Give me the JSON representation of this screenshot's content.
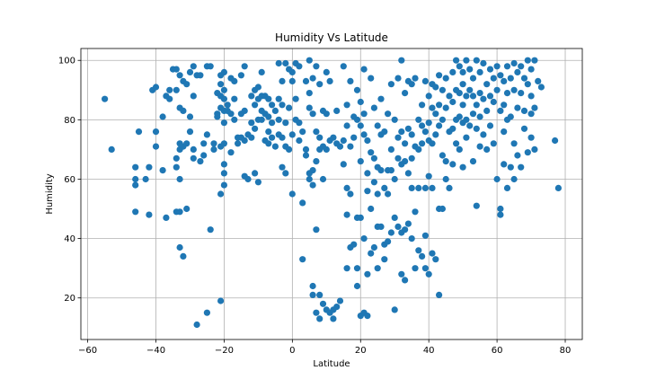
{
  "chart_data": {
    "type": "scatter",
    "title": "Humidity Vs Latitude",
    "xlabel": "Latitude",
    "ylabel": "Humidity",
    "xlim": [
      -62,
      85
    ],
    "ylim": [
      6,
      104
    ],
    "xticks": [
      -60,
      -40,
      -20,
      0,
      20,
      40,
      60,
      80
    ],
    "yticks": [
      20,
      40,
      60,
      80,
      100
    ],
    "grid": true,
    "marker_color": "#1f77b4",
    "points": [
      [
        -55,
        87
      ],
      [
        -53,
        70
      ],
      [
        -46,
        64
      ],
      [
        -46,
        60
      ],
      [
        -46,
        58
      ],
      [
        -46,
        49
      ],
      [
        -45,
        76
      ],
      [
        -43,
        60
      ],
      [
        -42,
        64
      ],
      [
        -42,
        48
      ],
      [
        -41,
        90
      ],
      [
        -40,
        91
      ],
      [
        -40,
        76
      ],
      [
        -40,
        71
      ],
      [
        -38,
        81
      ],
      [
        -38,
        63
      ],
      [
        -37,
        88
      ],
      [
        -37,
        47
      ],
      [
        -36,
        90
      ],
      [
        -36,
        87
      ],
      [
        -35,
        97
      ],
      [
        -34,
        97
      ],
      [
        -34,
        90
      ],
      [
        -34,
        67
      ],
      [
        -34,
        64
      ],
      [
        -34,
        49
      ],
      [
        -33,
        95
      ],
      [
        -33,
        84
      ],
      [
        -33,
        72
      ],
      [
        -33,
        70
      ],
      [
        -33,
        60
      ],
      [
        -33,
        49
      ],
      [
        -33,
        37
      ],
      [
        -32,
        93
      ],
      [
        -32,
        83
      ],
      [
        -32,
        71
      ],
      [
        -32,
        34
      ],
      [
        -31,
        92
      ],
      [
        -31,
        72
      ],
      [
        -31,
        50
      ],
      [
        -30,
        96
      ],
      [
        -30,
        81
      ],
      [
        -30,
        76
      ],
      [
        -29,
        98
      ],
      [
        -29,
        88
      ],
      [
        -29,
        70
      ],
      [
        -29,
        67
      ],
      [
        -28,
        95
      ],
      [
        -28,
        11
      ],
      [
        -27,
        95
      ],
      [
        -27,
        66
      ],
      [
        -26,
        72
      ],
      [
        -26,
        68
      ],
      [
        -25,
        98
      ],
      [
        -25,
        75
      ],
      [
        -25,
        15
      ],
      [
        -24,
        98
      ],
      [
        -24,
        43
      ],
      [
        -23,
        72
      ],
      [
        -23,
        70
      ],
      [
        -22,
        89
      ],
      [
        -22,
        82
      ],
      [
        -22,
        81
      ],
      [
        -21,
        95
      ],
      [
        -21,
        92
      ],
      [
        -21,
        88
      ],
      [
        -21,
        84
      ],
      [
        -21,
        71
      ],
      [
        -21,
        55
      ],
      [
        -21,
        19
      ],
      [
        -20,
        96
      ],
      [
        -20,
        90
      ],
      [
        -20,
        87
      ],
      [
        -20,
        83
      ],
      [
        -20,
        79
      ],
      [
        -20,
        72
      ],
      [
        -20,
        65
      ],
      [
        -20,
        62
      ],
      [
        -20,
        58
      ],
      [
        -19,
        85
      ],
      [
        -19,
        83
      ],
      [
        -18,
        94
      ],
      [
        -18,
        82
      ],
      [
        -18,
        69
      ],
      [
        -17,
        93
      ],
      [
        -17,
        87
      ],
      [
        -17,
        80
      ],
      [
        -16,
        74
      ],
      [
        -16,
        72
      ],
      [
        -15,
        95
      ],
      [
        -15,
        82
      ],
      [
        -15,
        74
      ],
      [
        -14,
        98
      ],
      [
        -14,
        83
      ],
      [
        -14,
        73
      ],
      [
        -14,
        61
      ],
      [
        -13,
        75
      ],
      [
        -13,
        60
      ],
      [
        -12,
        88
      ],
      [
        -12,
        79
      ],
      [
        -12,
        74
      ],
      [
        -11,
        90
      ],
      [
        -11,
        85
      ],
      [
        -11,
        77
      ],
      [
        -11,
        62
      ],
      [
        -10,
        91
      ],
      [
        -10,
        87
      ],
      [
        -10,
        80
      ],
      [
        -10,
        59
      ],
      [
        -9,
        96
      ],
      [
        -9,
        88
      ],
      [
        -9,
        83
      ],
      [
        -9,
        80
      ],
      [
        -8,
        88
      ],
      [
        -8,
        82
      ],
      [
        -8,
        73
      ],
      [
        -7,
        87
      ],
      [
        -7,
        81
      ],
      [
        -7,
        76
      ],
      [
        -7,
        72
      ],
      [
        -6,
        85
      ],
      [
        -6,
        79
      ],
      [
        -6,
        74
      ],
      [
        -5,
        83
      ],
      [
        -5,
        71
      ],
      [
        -4,
        99
      ],
      [
        -4,
        87
      ],
      [
        -4,
        80
      ],
      [
        -4,
        75
      ],
      [
        -3,
        93
      ],
      [
        -3,
        85
      ],
      [
        -3,
        74
      ],
      [
        -3,
        64
      ],
      [
        -2,
        99
      ],
      [
        -2,
        79
      ],
      [
        -2,
        71
      ],
      [
        -2,
        62
      ],
      [
        -1,
        97
      ],
      [
        -1,
        84
      ],
      [
        -1,
        70
      ],
      [
        0,
        96
      ],
      [
        0,
        93
      ],
      [
        0,
        75
      ],
      [
        0,
        55
      ],
      [
        1,
        99
      ],
      [
        1,
        87
      ],
      [
        1,
        80
      ],
      [
        2,
        98
      ],
      [
        2,
        79
      ],
      [
        2,
        73
      ],
      [
        3,
        76
      ],
      [
        3,
        52
      ],
      [
        3,
        33
      ],
      [
        4,
        93
      ],
      [
        4,
        70
      ],
      [
        4,
        68
      ],
      [
        5,
        100
      ],
      [
        5,
        89
      ],
      [
        5,
        84
      ],
      [
        5,
        62
      ],
      [
        5,
        60
      ],
      [
        6,
        94
      ],
      [
        6,
        82
      ],
      [
        6,
        63
      ],
      [
        6,
        58
      ],
      [
        6,
        24
      ],
      [
        6,
        21
      ],
      [
        7,
        98
      ],
      [
        7,
        76
      ],
      [
        7,
        66
      ],
      [
        7,
        43
      ],
      [
        7,
        15
      ],
      [
        8,
        92
      ],
      [
        8,
        74
      ],
      [
        8,
        70
      ],
      [
        8,
        13
      ],
      [
        8,
        21
      ],
      [
        9,
        83
      ],
      [
        9,
        71
      ],
      [
        9,
        60
      ],
      [
        9,
        18
      ],
      [
        10,
        96
      ],
      [
        10,
        82
      ],
      [
        10,
        70
      ],
      [
        10,
        16
      ],
      [
        11,
        93
      ],
      [
        11,
        73
      ],
      [
        11,
        15
      ],
      [
        12,
        74
      ],
      [
        12,
        16
      ],
      [
        12,
        13
      ],
      [
        13,
        83
      ],
      [
        13,
        72
      ],
      [
        13,
        17
      ],
      [
        14,
        71
      ],
      [
        14,
        19
      ],
      [
        15,
        98
      ],
      [
        15,
        73
      ],
      [
        15,
        65
      ],
      [
        16,
        85
      ],
      [
        16,
        78
      ],
      [
        16,
        57
      ],
      [
        16,
        48
      ],
      [
        16,
        30
      ],
      [
        17,
        93
      ],
      [
        17,
        71
      ],
      [
        17,
        55
      ],
      [
        17,
        37
      ],
      [
        18,
        81
      ],
      [
        18,
        74
      ],
      [
        18,
        38
      ],
      [
        19,
        90
      ],
      [
        19,
        80
      ],
      [
        19,
        47
      ],
      [
        19,
        30
      ],
      [
        19,
        24
      ],
      [
        20,
        86
      ],
      [
        20,
        78
      ],
      [
        20,
        66
      ],
      [
        20,
        47
      ],
      [
        20,
        14
      ],
      [
        21,
        97
      ],
      [
        21,
        82
      ],
      [
        21,
        75
      ],
      [
        21,
        40
      ],
      [
        21,
        15
      ],
      [
        22,
        73
      ],
      [
        22,
        62
      ],
      [
        22,
        56
      ],
      [
        22,
        28
      ],
      [
        22,
        14
      ],
      [
        23,
        94
      ],
      [
        23,
        69
      ],
      [
        23,
        50
      ],
      [
        23,
        35
      ],
      [
        24,
        84
      ],
      [
        24,
        67
      ],
      [
        24,
        59
      ],
      [
        24,
        37
      ],
      [
        25,
        78
      ],
      [
        25,
        64
      ],
      [
        25,
        55
      ],
      [
        25,
        44
      ],
      [
        25,
        30
      ],
      [
        26,
        87
      ],
      [
        26,
        75
      ],
      [
        26,
        63
      ],
      [
        26,
        44
      ],
      [
        27,
        76
      ],
      [
        27,
        57
      ],
      [
        27,
        38
      ],
      [
        27,
        33
      ],
      [
        28,
        82
      ],
      [
        28,
        63
      ],
      [
        28,
        55
      ],
      [
        28,
        39
      ],
      [
        29,
        92
      ],
      [
        29,
        70
      ],
      [
        29,
        63
      ],
      [
        29,
        42
      ],
      [
        30,
        80
      ],
      [
        30,
        60
      ],
      [
        30,
        47
      ],
      [
        30,
        16
      ],
      [
        31,
        94
      ],
      [
        31,
        74
      ],
      [
        31,
        67
      ],
      [
        31,
        44
      ],
      [
        32,
        100
      ],
      [
        32,
        76
      ],
      [
        32,
        65
      ],
      [
        32,
        42
      ],
      [
        32,
        28
      ],
      [
        33,
        89
      ],
      [
        33,
        72
      ],
      [
        33,
        66
      ],
      [
        33,
        43
      ],
      [
        33,
        26
      ],
      [
        34,
        93
      ],
      [
        34,
        77
      ],
      [
        34,
        62
      ],
      [
        34,
        45
      ],
      [
        35,
        92
      ],
      [
        35,
        75
      ],
      [
        35,
        67
      ],
      [
        35,
        57
      ],
      [
        35,
        40
      ],
      [
        36,
        94
      ],
      [
        36,
        71
      ],
      [
        36,
        49
      ],
      [
        36,
        30
      ],
      [
        37,
        80
      ],
      [
        37,
        70
      ],
      [
        37,
        57
      ],
      [
        37,
        36
      ],
      [
        38,
        85
      ],
      [
        38,
        78
      ],
      [
        38,
        72
      ],
      [
        38,
        34
      ],
      [
        39,
        93
      ],
      [
        39,
        76
      ],
      [
        39,
        57
      ],
      [
        39,
        41
      ],
      [
        39,
        30
      ],
      [
        40,
        88
      ],
      [
        40,
        79
      ],
      [
        40,
        73
      ],
      [
        40,
        61
      ],
      [
        40,
        28
      ],
      [
        41,
        92
      ],
      [
        41,
        84
      ],
      [
        41,
        72
      ],
      [
        41,
        57
      ],
      [
        41,
        35
      ],
      [
        42,
        91
      ],
      [
        42,
        82
      ],
      [
        42,
        75
      ],
      [
        42,
        33
      ],
      [
        43,
        95
      ],
      [
        43,
        85
      ],
      [
        43,
        78
      ],
      [
        43,
        50
      ],
      [
        43,
        21
      ],
      [
        44,
        90
      ],
      [
        44,
        80
      ],
      [
        44,
        68
      ],
      [
        44,
        50
      ],
      [
        45,
        94
      ],
      [
        45,
        84
      ],
      [
        45,
        66
      ],
      [
        45,
        60
      ],
      [
        46,
        88
      ],
      [
        46,
        76
      ],
      [
        46,
        57
      ],
      [
        47,
        96
      ],
      [
        47,
        86
      ],
      [
        47,
        77
      ],
      [
        47,
        65
      ],
      [
        48,
        100
      ],
      [
        48,
        90
      ],
      [
        48,
        80
      ],
      [
        48,
        72
      ],
      [
        49,
        98
      ],
      [
        49,
        89
      ],
      [
        49,
        81
      ],
      [
        49,
        70
      ],
      [
        50,
        96
      ],
      [
        50,
        92
      ],
      [
        50,
        85
      ],
      [
        50,
        79
      ],
      [
        50,
        64
      ],
      [
        51,
        100
      ],
      [
        51,
        88
      ],
      [
        51,
        80
      ],
      [
        51,
        74
      ],
      [
        52,
        97
      ],
      [
        52,
        90
      ],
      [
        52,
        78
      ],
      [
        53,
        94
      ],
      [
        53,
        88
      ],
      [
        53,
        82
      ],
      [
        53,
        66
      ],
      [
        54,
        100
      ],
      [
        54,
        85
      ],
      [
        54,
        77
      ],
      [
        54,
        51
      ],
      [
        55,
        96
      ],
      [
        55,
        89
      ],
      [
        55,
        81
      ],
      [
        55,
        71
      ],
      [
        56,
        99
      ],
      [
        56,
        87
      ],
      [
        56,
        75
      ],
      [
        57,
        92
      ],
      [
        57,
        83
      ],
      [
        57,
        70
      ],
      [
        58,
        97
      ],
      [
        58,
        88
      ],
      [
        58,
        78
      ],
      [
        59,
        94
      ],
      [
        59,
        86
      ],
      [
        59,
        72
      ],
      [
        60,
        98
      ],
      [
        60,
        90
      ],
      [
        60,
        60
      ],
      [
        61,
        95
      ],
      [
        61,
        83
      ],
      [
        61,
        50
      ],
      [
        61,
        48
      ],
      [
        62,
        93
      ],
      [
        62,
        85
      ],
      [
        62,
        76
      ],
      [
        62,
        65
      ],
      [
        63,
        98
      ],
      [
        63,
        89
      ],
      [
        63,
        80
      ],
      [
        63,
        57
      ],
      [
        64,
        94
      ],
      [
        64,
        81
      ],
      [
        64,
        64
      ],
      [
        65,
        99
      ],
      [
        65,
        90
      ],
      [
        65,
        72
      ],
      [
        65,
        60
      ],
      [
        66,
        96
      ],
      [
        66,
        84
      ],
      [
        66,
        68
      ],
      [
        67,
        98
      ],
      [
        67,
        89
      ],
      [
        67,
        64
      ],
      [
        68,
        94
      ],
      [
        68,
        83
      ],
      [
        68,
        77
      ],
      [
        69,
        100
      ],
      [
        69,
        92
      ],
      [
        69,
        69
      ],
      [
        70,
        97
      ],
      [
        70,
        88
      ],
      [
        70,
        82
      ],
      [
        70,
        74
      ],
      [
        71,
        100
      ],
      [
        71,
        84
      ],
      [
        71,
        70
      ],
      [
        72,
        93
      ],
      [
        73,
        91
      ],
      [
        77,
        73
      ],
      [
        78,
        57
      ]
    ]
  }
}
